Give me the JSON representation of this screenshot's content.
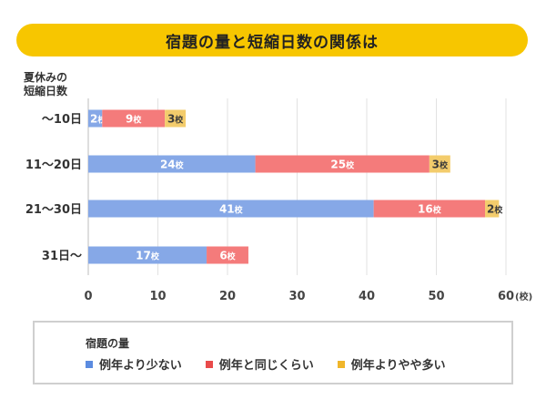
{
  "title": "宿題の量と短縮日数の関係は",
  "colors": {
    "title_bg": "#f7c600",
    "less": "#86a8e7",
    "same": "#f47b7b",
    "more": "#f3cc6c"
  },
  "chart_data": {
    "type": "bar",
    "orientation": "horizontal",
    "stacked": true,
    "title": "宿題の量と短縮日数の関係は",
    "ylabel": "夏休みの短縮日数",
    "xlabel": "",
    "x_unit": "(校)",
    "xlim": [
      0,
      60
    ],
    "xticks": [
      0,
      10,
      20,
      30,
      40,
      50,
      60
    ],
    "grid": true,
    "categories": [
      "～10日",
      "11～20日",
      "21～30日",
      "31日～"
    ],
    "series": [
      {
        "name": "例年より少ない",
        "color": "#86a8e7",
        "values": [
          2,
          24,
          41,
          17
        ]
      },
      {
        "name": "例年と同じくらい",
        "color": "#f47b7b",
        "values": [
          9,
          25,
          16,
          6
        ]
      },
      {
        "name": "例年よりやや多い",
        "color": "#f3cc6c",
        "values": [
          3,
          3,
          2,
          0
        ]
      }
    ],
    "label_suffix": "校"
  },
  "legend": {
    "title": "宿題の量",
    "items": [
      "例年より少ない",
      "例年と同じくらい",
      "例年よりやや多い"
    ]
  },
  "ycat_title_line1": "夏休みの",
  "ycat_title_line2": "短縮日数"
}
